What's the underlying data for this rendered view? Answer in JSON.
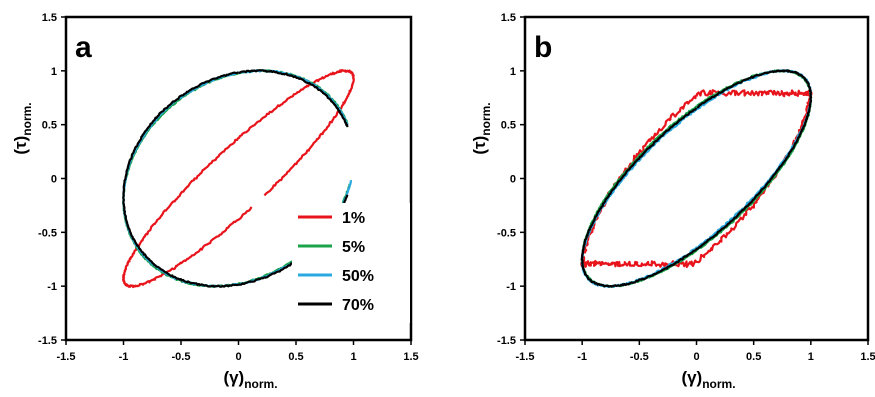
{
  "chart_data": [
    {
      "type": "line",
      "panel_label": "a",
      "xlabel": "(γ)",
      "xlabel_sub": "norm.",
      "ylabel": "(τ)",
      "ylabel_sub": "norm.",
      "xlim": [
        -1.5,
        1.5
      ],
      "ylim": [
        -1.5,
        1.5
      ],
      "xticks": [
        -1.5,
        -1,
        -0.5,
        0,
        0.5,
        1,
        1.5
      ],
      "yticks": [
        -1.5,
        -1,
        -0.5,
        0,
        0.5,
        1,
        1.5
      ],
      "xtick_labels": [
        "-1.5",
        "-1",
        "-0.5",
        "0",
        "0.5",
        "1",
        "1.5"
      ],
      "ytick_labels": [
        "-1.5",
        "-1",
        "-0.5",
        "0",
        "0.5",
        "1",
        "1.5"
      ],
      "grid": false,
      "legend_position": "bottom-right",
      "series": [
        {
          "name": "1%",
          "color": "#e8141b",
          "shape": "lissajous",
          "phase_deg": 22,
          "noise": 0.008,
          "gap": [
            0.465,
            0.48
          ]
        },
        {
          "name": "5%",
          "color": "#1aa34a",
          "shape": "lissajous",
          "phase_deg": 78,
          "noise": 0.006,
          "gap": [
            0.2,
            0.29
          ]
        },
        {
          "name": "50%",
          "color": "#2aa9e0",
          "shape": "lissajous",
          "phase_deg": 79,
          "noise": 0.006,
          "gap": [
            0.2,
            0.28
          ]
        },
        {
          "name": "70%",
          "color": "#000000",
          "shape": "lissajous",
          "phase_deg": 80,
          "noise": 0.006,
          "gap": [
            0.2,
            0.3
          ]
        }
      ]
    },
    {
      "type": "line",
      "panel_label": "b",
      "xlabel": "(γ)",
      "xlabel_sub": "norm.",
      "ylabel": "(τ)",
      "ylabel_sub": "norm.",
      "xlim": [
        -1.5,
        1.5
      ],
      "ylim": [
        -1.5,
        1.5
      ],
      "xticks": [
        -1.5,
        -1,
        -0.5,
        0,
        0.5,
        1,
        1.5
      ],
      "yticks": [
        -1.5,
        -1,
        -0.5,
        0,
        0.5,
        1,
        1.5
      ],
      "xtick_labels": [
        "-1.5",
        "-1",
        "-0.5",
        "0",
        "0.5",
        "1",
        "1.5"
      ],
      "ytick_labels": [
        "-1.5",
        "-1",
        "-0.5",
        "0",
        "0.5",
        "1",
        "1.5"
      ],
      "grid": false,
      "series": [
        {
          "name": "1%",
          "color": "#e8141b",
          "shape": "clipped",
          "phase_deg": 42,
          "clip": 0.8,
          "noise": 0.02
        },
        {
          "name": "5%",
          "color": "#1aa34a",
          "shape": "lissajous",
          "phase_deg": 42,
          "noise": 0.006
        },
        {
          "name": "50%",
          "color": "#2aa9e0",
          "shape": "lissajous",
          "phase_deg": 40,
          "noise": 0.008
        },
        {
          "name": "70%",
          "color": "#000000",
          "shape": "lissajous",
          "phase_deg": 41,
          "noise": 0.006
        }
      ]
    }
  ]
}
